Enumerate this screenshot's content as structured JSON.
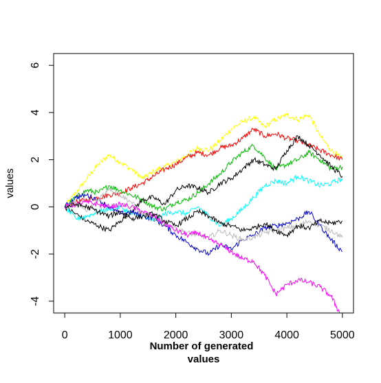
{
  "chart_data": {
    "type": "line",
    "title": "",
    "xlabel": "Number of generated values",
    "xlabel_lines": [
      "Number of generated",
      "values"
    ],
    "ylabel": "values",
    "xlim": [
      -200,
      5200
    ],
    "ylim": [
      -4.5,
      6.5
    ],
    "xticks": [
      {
        "value": 0,
        "label": "0"
      },
      {
        "value": 1000,
        "label": "1000"
      },
      {
        "value": 2000,
        "label": "2000"
      },
      {
        "value": 3000,
        "label": "3000"
      },
      {
        "value": 4000,
        "label": "4000"
      },
      {
        "value": 5000,
        "label": "5000"
      }
    ],
    "yticks": [
      {
        "value": -4,
        "label": "-4"
      },
      {
        "value": -2,
        "label": "-2"
      },
      {
        "value": 0,
        "label": "0"
      },
      {
        "value": 2,
        "label": "2"
      },
      {
        "value": 4,
        "label": "4"
      },
      {
        "value": 6,
        "label": "6"
      }
    ],
    "grid": false,
    "legend": "none",
    "series": [
      {
        "color": "#ffff00",
        "x": [
          0,
          200,
          400,
          600,
          800,
          1000,
          1200,
          1400,
          1600,
          1800,
          2000,
          2200,
          2400,
          2600,
          2800,
          3000,
          3200,
          3400,
          3600,
          3800,
          4000,
          4200,
          4400,
          4600,
          4800,
          5000
        ],
        "y": [
          0,
          0.6,
          1.2,
          1.8,
          2.2,
          1.9,
          1.6,
          1.2,
          1.5,
          1.7,
          1.9,
          2.2,
          2.5,
          2.4,
          2.8,
          3.3,
          3.6,
          3.8,
          3.4,
          3.7,
          3.9,
          3.7,
          3.9,
          3.0,
          2.4,
          2.0
        ]
      },
      {
        "color": "#ff0000",
        "x": [
          0,
          200,
          400,
          600,
          800,
          1000,
          1200,
          1400,
          1600,
          1800,
          2000,
          2200,
          2400,
          2600,
          2800,
          3000,
          3200,
          3400,
          3600,
          3800,
          4000,
          4200,
          4400,
          4600,
          4800,
          5000
        ],
        "y": [
          0,
          0.2,
          0.3,
          0.4,
          0.5,
          0.6,
          0.8,
          1.0,
          1.3,
          1.6,
          1.8,
          2.1,
          2.3,
          2.2,
          2.5,
          2.6,
          2.9,
          3.3,
          3.0,
          3.1,
          2.9,
          2.8,
          2.6,
          2.4,
          2.2,
          2.0
        ]
      },
      {
        "color": "#00bb00",
        "x": [
          0,
          200,
          400,
          600,
          800,
          1000,
          1200,
          1400,
          1600,
          1800,
          2000,
          2200,
          2400,
          2600,
          2800,
          3000,
          3200,
          3400,
          3600,
          3800,
          4000,
          4200,
          4400,
          4600,
          4800,
          5000
        ],
        "y": [
          0,
          0.4,
          0.7,
          0.6,
          0.9,
          0.7,
          0.5,
          0.3,
          0.0,
          -0.1,
          0.2,
          0.3,
          0.6,
          1.0,
          1.4,
          1.9,
          2.3,
          2.6,
          2.1,
          1.6,
          1.8,
          2.0,
          2.3,
          2.0,
          1.6,
          1.7
        ]
      },
      {
        "color": "#000000",
        "x": [
          0,
          200,
          400,
          600,
          800,
          1000,
          1200,
          1400,
          1600,
          1800,
          2000,
          2200,
          2400,
          2600,
          2800,
          3000,
          3200,
          3400,
          3600,
          3800,
          4000,
          4200,
          4400,
          4600,
          4800,
          5000
        ],
        "y": [
          0,
          -0.3,
          -0.6,
          -0.8,
          -1.0,
          -0.6,
          -0.2,
          0.3,
          0.4,
          0.1,
          0.7,
          0.9,
          0.8,
          0.6,
          1.0,
          1.2,
          1.6,
          2.0,
          1.8,
          1.6,
          2.4,
          3.0,
          2.6,
          2.2,
          1.7,
          1.3
        ]
      },
      {
        "color": "#00ffff",
        "x": [
          0,
          200,
          400,
          600,
          800,
          1000,
          1200,
          1400,
          1600,
          1800,
          2000,
          2200,
          2400,
          2600,
          2800,
          3000,
          3200,
          3400,
          3600,
          3800,
          4000,
          4200,
          4400,
          4600,
          4800,
          5000
        ],
        "y": [
          0,
          -0.5,
          -0.4,
          -0.2,
          -0.1,
          0.0,
          -0.3,
          -0.4,
          -0.6,
          -0.3,
          -0.2,
          -0.3,
          0.0,
          -0.4,
          -0.8,
          -0.5,
          -0.1,
          0.4,
          0.9,
          1.1,
          1.0,
          1.3,
          1.1,
          0.9,
          1.0,
          1.2
        ]
      },
      {
        "color": "#0000cc",
        "x": [
          0,
          200,
          400,
          600,
          800,
          1000,
          1200,
          1400,
          1600,
          1800,
          2000,
          2200,
          2400,
          2600,
          2800,
          3000,
          3200,
          3400,
          3600,
          3800,
          4000,
          4200,
          4400,
          4600,
          4800,
          5000
        ],
        "y": [
          0,
          0.4,
          0.5,
          0.3,
          0.0,
          -0.3,
          -0.2,
          -0.4,
          -0.5,
          -0.8,
          -1.2,
          -1.5,
          -1.8,
          -2.0,
          -1.6,
          -1.8,
          -1.4,
          -1.2,
          -0.9,
          -0.8,
          -0.7,
          -0.5,
          -0.2,
          -0.8,
          -1.4,
          -1.9
        ]
      },
      {
        "color": "#bbbbbb",
        "x": [
          0,
          200,
          400,
          600,
          800,
          1000,
          1200,
          1400,
          1600,
          1800,
          2000,
          2200,
          2400,
          2600,
          2800,
          3000,
          3200,
          3400,
          3600,
          3800,
          4000,
          4200,
          4400,
          4600,
          4800,
          5000
        ],
        "y": [
          0,
          0.2,
          -0.2,
          0.3,
          0.8,
          0.5,
          0.2,
          -0.3,
          -0.5,
          -0.7,
          -0.9,
          -1.1,
          -1.2,
          -1.3,
          -1.0,
          -1.2,
          -1.4,
          -1.3,
          -1.1,
          -1.0,
          -0.9,
          -0.8,
          -0.6,
          -0.8,
          -1.0,
          -1.3
        ]
      },
      {
        "color": "#ff00ff",
        "x": [
          0,
          200,
          400,
          600,
          800,
          1000,
          1200,
          1400,
          1600,
          1800,
          2000,
          2200,
          2400,
          2600,
          2800,
          3000,
          3200,
          3400,
          3600,
          3800,
          4000,
          4200,
          4400,
          4600,
          4800,
          4950
        ],
        "y": [
          0,
          0.1,
          0.2,
          0.1,
          0.0,
          0.1,
          0.0,
          -0.2,
          -0.4,
          -0.7,
          -1.0,
          -1.2,
          -1.1,
          -1.4,
          -1.6,
          -1.9,
          -2.2,
          -2.3,
          -2.9,
          -3.7,
          -3.3,
          -3.1,
          -3.2,
          -3.4,
          -3.8,
          -4.5
        ]
      },
      {
        "color": "#000000",
        "x": [
          0,
          200,
          400,
          600,
          800,
          1000,
          1200,
          1400,
          1600,
          1800,
          2000,
          2200,
          2400,
          2600,
          2800,
          3000,
          3200,
          3400,
          3600,
          3800,
          4000,
          4200,
          4400,
          4600,
          4800,
          5000
        ],
        "y": [
          0,
          0.1,
          0.0,
          -0.2,
          -0.4,
          -0.2,
          -0.5,
          -0.4,
          -0.3,
          -0.6,
          -0.8,
          -0.5,
          -0.2,
          -0.4,
          -0.7,
          -0.8,
          -1.0,
          -0.9,
          -0.7,
          -1.0,
          -1.2,
          -0.8,
          -0.9,
          -0.6,
          -0.7,
          -0.6
        ]
      }
    ]
  }
}
